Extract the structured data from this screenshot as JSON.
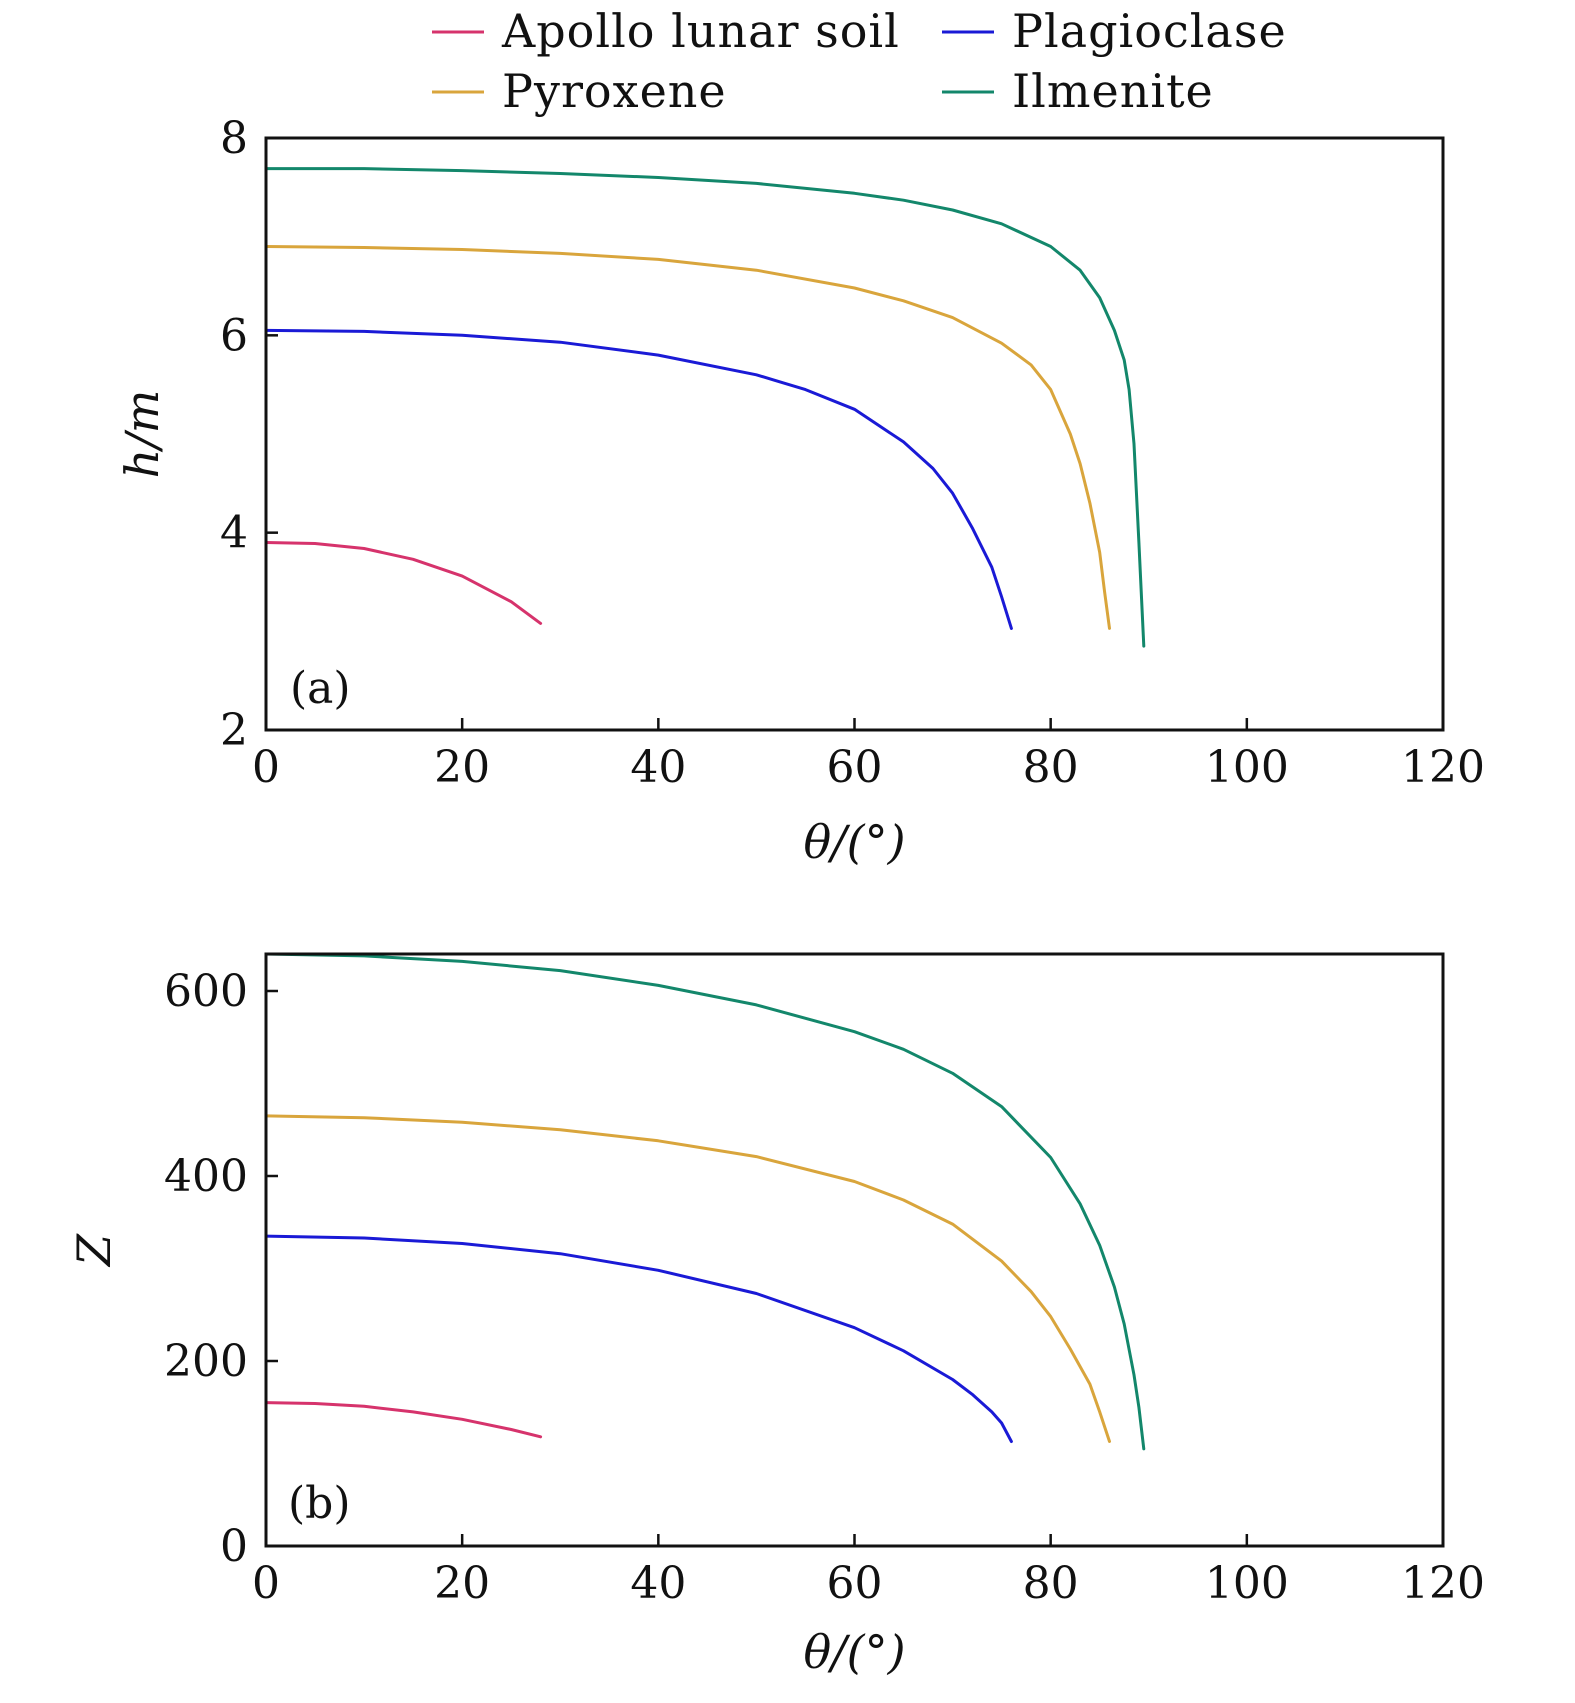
{
  "legend": {
    "items": [
      {
        "label": "Apollo lunar soil",
        "color": "#d6336c"
      },
      {
        "label": "Plagioclase",
        "color": "#1a1ad6"
      },
      {
        "label": "Pyroxene",
        "color": "#d9a53c"
      },
      {
        "label": "Ilmenite",
        "color": "#13876b"
      }
    ]
  },
  "chart_data": [
    {
      "type": "line",
      "panel_label": "(a)",
      "xlabel": "θ/(°)",
      "ylabel": "h/m",
      "xlim": [
        0,
        120
      ],
      "ylim": [
        2,
        8
      ],
      "xticks": [
        0,
        20,
        40,
        60,
        80,
        100,
        120
      ],
      "yticks": [
        2,
        4,
        6,
        8
      ],
      "grid": false,
      "legend_position": "top",
      "series": [
        {
          "name": "Apollo lunar soil",
          "color": "#d6336c",
          "x": [
            0,
            5,
            10,
            15,
            20,
            25,
            28
          ],
          "y": [
            3.9,
            3.89,
            3.84,
            3.73,
            3.56,
            3.3,
            3.08
          ]
        },
        {
          "name": "Plagioclase",
          "color": "#1a1ad6",
          "x": [
            0,
            10,
            20,
            30,
            40,
            50,
            55,
            60,
            65,
            68,
            70,
            72,
            74,
            75,
            76
          ],
          "y": [
            6.05,
            6.04,
            6.0,
            5.93,
            5.8,
            5.6,
            5.45,
            5.25,
            4.92,
            4.65,
            4.4,
            4.05,
            3.65,
            3.35,
            3.03
          ]
        },
        {
          "name": "Pyroxene",
          "color": "#d9a53c",
          "x": [
            0,
            10,
            20,
            30,
            40,
            50,
            60,
            65,
            70,
            75,
            78,
            80,
            82,
            83,
            84,
            85,
            85.5,
            86
          ],
          "y": [
            6.9,
            6.89,
            6.87,
            6.83,
            6.77,
            6.66,
            6.48,
            6.35,
            6.18,
            5.92,
            5.7,
            5.45,
            5.0,
            4.7,
            4.3,
            3.8,
            3.4,
            3.03
          ]
        },
        {
          "name": "Ilmenite",
          "color": "#13876b",
          "x": [
            0,
            10,
            20,
            30,
            40,
            50,
            60,
            65,
            70,
            75,
            80,
            83,
            85,
            86.5,
            87.5,
            88,
            88.5,
            89,
            89.5
          ],
          "y": [
            7.69,
            7.69,
            7.67,
            7.64,
            7.6,
            7.54,
            7.44,
            7.37,
            7.27,
            7.13,
            6.9,
            6.66,
            6.38,
            6.05,
            5.75,
            5.45,
            4.9,
            3.9,
            2.85
          ]
        }
      ]
    },
    {
      "type": "line",
      "panel_label": "(b)",
      "xlabel": "θ/(°)",
      "ylabel": "Z",
      "xlim": [
        0,
        120
      ],
      "ylim": [
        0,
        640
      ],
      "xticks": [
        0,
        20,
        40,
        60,
        80,
        100,
        120
      ],
      "yticks": [
        0,
        200,
        400,
        600
      ],
      "grid": false,
      "series": [
        {
          "name": "Apollo lunar soil",
          "color": "#d6336c",
          "x": [
            0,
            5,
            10,
            15,
            20,
            25,
            28
          ],
          "y": [
            155,
            154,
            151,
            145,
            137,
            126,
            118
          ]
        },
        {
          "name": "Plagioclase",
          "color": "#1a1ad6",
          "x": [
            0,
            10,
            20,
            30,
            40,
            50,
            60,
            65,
            70,
            72,
            74,
            75,
            76
          ],
          "y": [
            335,
            333,
            327,
            316,
            298,
            273,
            236,
            211,
            180,
            164,
            145,
            133,
            113
          ]
        },
        {
          "name": "Pyroxene",
          "color": "#d9a53c",
          "x": [
            0,
            10,
            20,
            30,
            40,
            50,
            60,
            65,
            70,
            75,
            78,
            80,
            82,
            84,
            85,
            86
          ],
          "y": [
            465,
            463,
            458,
            450,
            438,
            421,
            394,
            374,
            348,
            308,
            275,
            248,
            213,
            175,
            145,
            113
          ]
        },
        {
          "name": "Ilmenite",
          "color": "#13876b",
          "x": [
            0,
            10,
            20,
            30,
            40,
            50,
            60,
            65,
            70,
            75,
            80,
            83,
            85,
            86.5,
            87.5,
            88.5,
            89,
            89.5
          ],
          "y": [
            640,
            638,
            632,
            622,
            606,
            585,
            556,
            537,
            511,
            475,
            420,
            370,
            325,
            280,
            240,
            185,
            150,
            105
          ]
        }
      ]
    }
  ]
}
